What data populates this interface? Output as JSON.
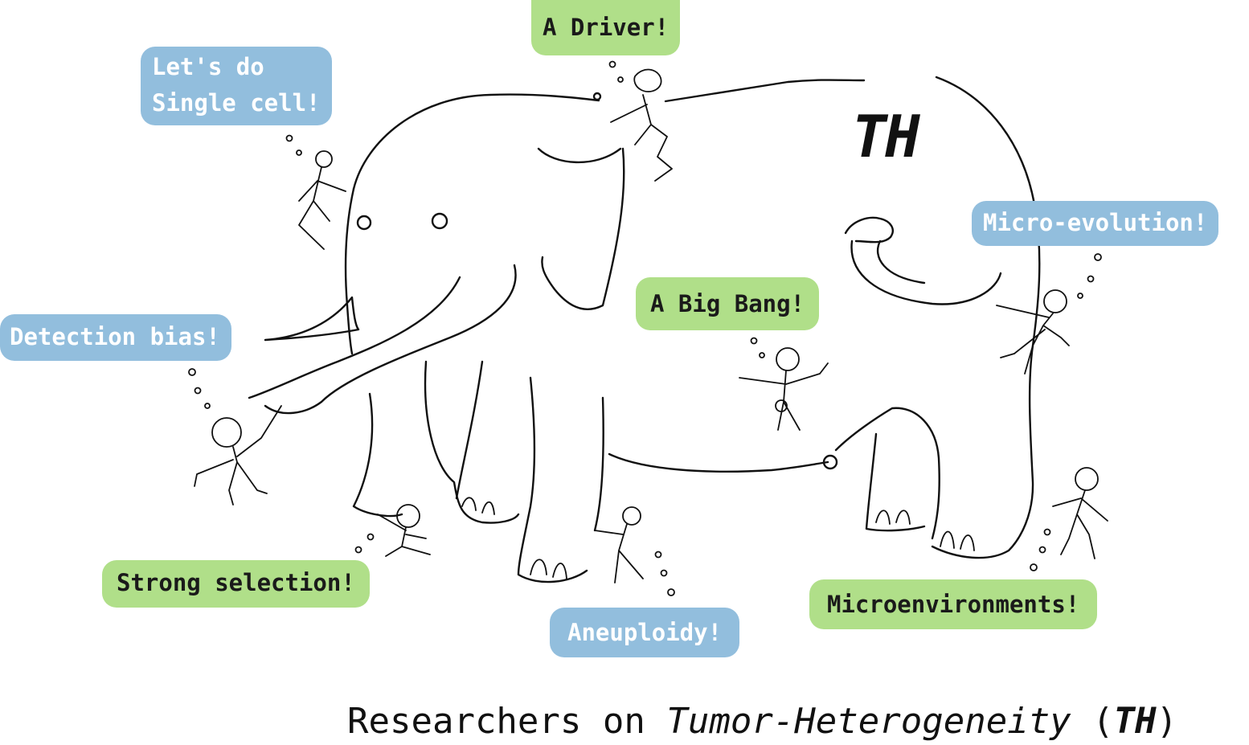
{
  "bubbles": {
    "single_cell": "Let's do\nSingle cell!",
    "driver": "A Driver!",
    "micro_evolution": "Micro-evolution!",
    "detection_bias": "Detection bias!",
    "big_bang": "A Big Bang!",
    "strong_selection": "Strong selection!",
    "aneuploidy": "Aneuploidy!",
    "microenvironments": "Microenvironments!"
  },
  "elephant_label": "TH",
  "caption": {
    "prefix": "Researchers on ",
    "topic": "Tumor-Heterogeneity",
    "open_paren": " (",
    "abbrev": "TH",
    "close_paren": ")"
  },
  "colors": {
    "blue_bubble": "#92bedd",
    "green_bubble": "#b0df89"
  }
}
